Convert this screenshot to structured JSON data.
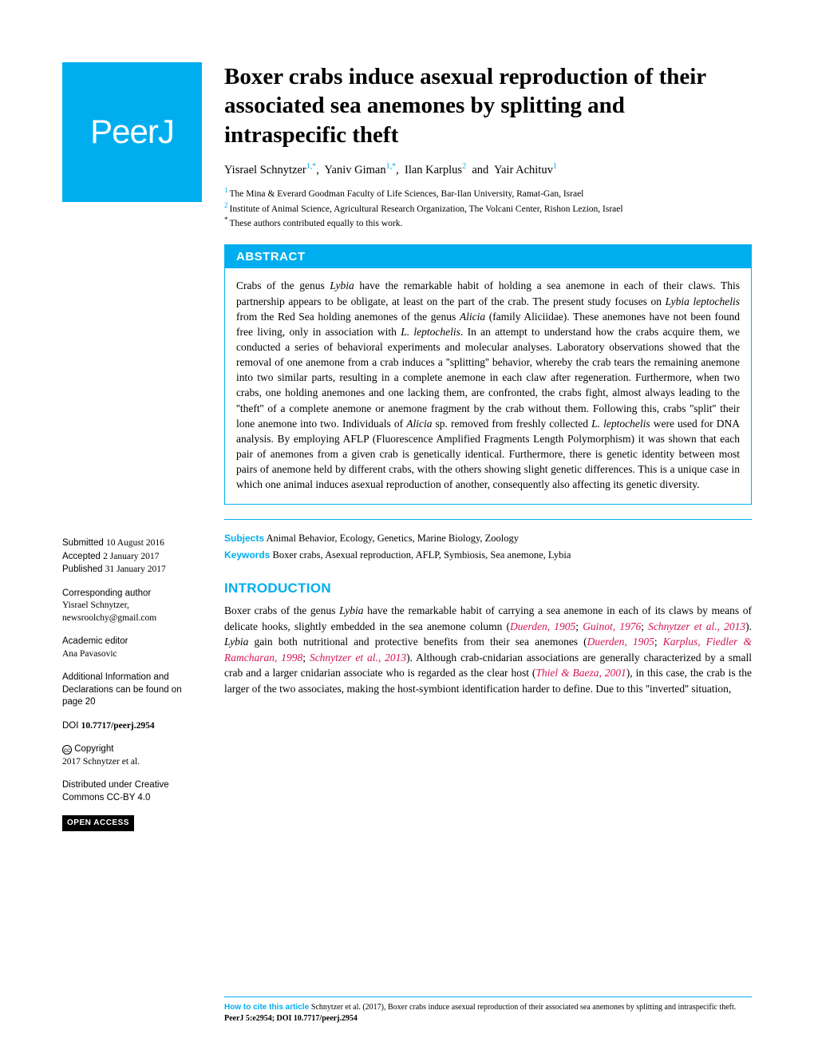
{
  "colors": {
    "brand": "#00aeef",
    "ref": "#d4145a",
    "text": "#000000",
    "bg": "#ffffff"
  },
  "logo": "PeerJ",
  "title": "Boxer crabs induce asexual reproduction of their associated sea anemones by splitting and intraspecific theft",
  "authors": {
    "a1": "Yisrael Schnytzer",
    "a1sup": "1,*",
    "a2": "Yaniv Giman",
    "a2sup": "1,*",
    "a3": "Ilan Karplus",
    "a3sup": "2",
    "a4": "Yair Achituv",
    "a4sup": "1"
  },
  "affiliations": {
    "n1": "1",
    "t1": "The Mina & Everard Goodman Faculty of Life Sciences, Bar-Ilan University, Ramat-Gan, Israel",
    "n2": "2",
    "t2": "Institute of Animal Science, Agricultural Research Organization, The Volcani Center, Rishon Lezion, Israel",
    "star": "*",
    "tstar": "These authors contributed equally to this work."
  },
  "abstract": {
    "header": "ABSTRACT",
    "p1a": "Crabs of the genus ",
    "p1b": "Lybia",
    "p1c": " have the remarkable habit of holding a sea anemone in each of their claws. This partnership appears to be obligate, at least on the part of the crab. The present study focuses on ",
    "p1d": "Lybia leptochelis",
    "p1e": " from the Red Sea holding anemones of the genus ",
    "p1f": "Alicia",
    "p1g": " (family Aliciidae). These anemones have not been found free living, only in association with ",
    "p1h": "L. leptochelis",
    "p1i": ". In an attempt to understand how the crabs acquire them, we conducted a series of behavioral experiments and molecular analyses. Laboratory observations showed that the removal of one anemone from a crab induces a ''splitting'' behavior, whereby the crab tears the remaining anemone into two similar parts, resulting in a complete anemone in each claw after regeneration. Furthermore, when two crabs, one holding anemones and one lacking them, are confronted, the crabs fight, almost always leading to the ''theft'' of a complete anemone or anemone fragment by the crab without them. Following this, crabs ''split'' their lone anemone into two. Individuals of ",
    "p1j": "Alicia",
    "p1k": " sp. removed from freshly collected ",
    "p1l": "L. leptochelis",
    "p1m": " were used for DNA analysis. By employing AFLP (Fluorescence Amplified Fragments Length Polymorphism) it was shown that each pair of anemones from a given crab is genetically identical. Furthermore, there is genetic identity between most pairs of anemone held by different crabs, with the others showing slight genetic differences. This is a unique case in which one animal induces asexual reproduction of another, consequently also affecting its genetic diversity."
  },
  "subjects": {
    "label": "Subjects",
    "text": " Animal Behavior, Ecology, Genetics, Marine Biology, Zoology"
  },
  "keywords": {
    "label": "Keywords",
    "text": "  Boxer crabs, Asexual reproduction, AFLP, Symbiosis, Sea anemone, Lybia"
  },
  "intro": {
    "header": "INTRODUCTION",
    "t1": "Boxer crabs of the genus ",
    "i1": "Lybia",
    "t2": " have the remarkable habit of carrying a sea anemone in each of its claws by means of delicate hooks, slightly embedded in the sea anemone column (",
    "r1": "Duerden, 1905",
    "t3": "; ",
    "r2": "Guinot, 1976",
    "t4": "; ",
    "r3": "Schnytzer et al., 2013",
    "t5": "). ",
    "i2": "Lybia",
    "t6": " gain both nutritional and protective benefits from their sea anemones (",
    "r4": "Duerden, 1905",
    "t7": "; ",
    "r5": "Karplus, Fiedler & Ramcharan, 1998",
    "t8": "; ",
    "r6": "Schnytzer et al., 2013",
    "t9": "). Although crab-cnidarian associations are generally characterized by a small crab and a larger cnidarian associate who is regarded as the clear host (",
    "r7": "Thiel & Baeza, 2001",
    "t10": "), in this case, the crab is the larger of the two associates, making the host-symbiont identification harder to define. Due to this ''inverted'' situation,"
  },
  "sidebar": {
    "submitted_l": "Submitted ",
    "submitted_v": "10 August 2016",
    "accepted_l": "Accepted ",
    "accepted_v": "2 January 2017",
    "published_l": "Published ",
    "published_v": "31 January 2017",
    "corr_l": "Corresponding author",
    "corr_name": "Yisrael Schnytzer,",
    "corr_email": "newsroolchy@gmail.com",
    "editor_l": "Academic editor",
    "editor_v": "Ana Pavasovic",
    "addl": "Additional Information and Declarations can be found on page 20",
    "doi_l": "DOI ",
    "doi_v": "10.7717/peerj.2954",
    "copy_l": "Copyright",
    "copy_v": "2017 Schnytzer et al.",
    "dist": "Distributed under Creative Commons CC-BY 4.0",
    "oa": "OPEN ACCESS"
  },
  "footer": {
    "label": "How to cite this article ",
    "text": "Schnytzer et al. (2017), Boxer crabs induce asexual reproduction of their associated sea anemones by splitting and intraspecific theft. ",
    "bold": "PeerJ 5:e2954; DOI 10.7717/peerj.2954"
  }
}
